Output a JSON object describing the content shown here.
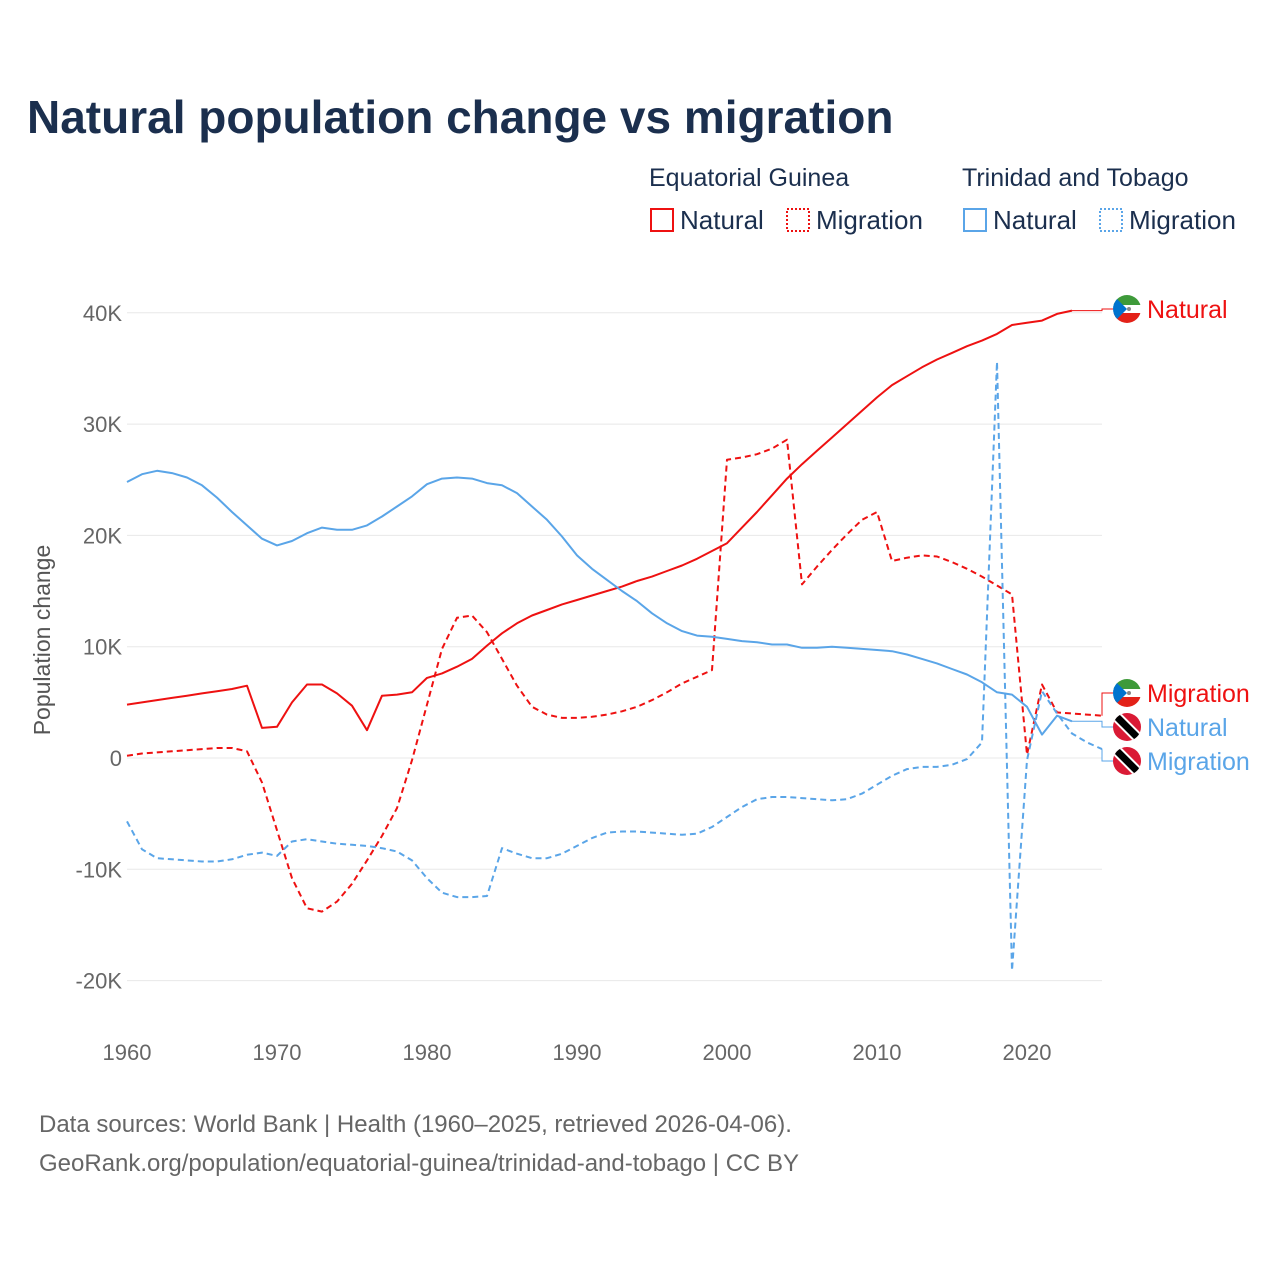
{
  "title": "Natural population change vs migration",
  "legend": {
    "groups": [
      {
        "country": "Equatorial Guinea",
        "color": "#ee1111",
        "items": [
          "Natural",
          "Migration"
        ]
      },
      {
        "country": "Trinidad and Tobago",
        "color": "#5aa5e8",
        "items": [
          "Natural",
          "Migration"
        ]
      }
    ]
  },
  "footer": {
    "line1": "Data sources: World Bank | Health (1960–2025, retrieved 2026-04-06).",
    "line2": "GeoRank.org/population/equatorial-guinea/trinidad-and-tobago | CC BY"
  },
  "chart_data": {
    "type": "line",
    "title": "Natural population change vs migration",
    "xlabel": "",
    "ylabel": "Population change",
    "xlim": [
      1960,
      2025
    ],
    "ylim": [
      -20000,
      40000
    ],
    "xticks": [
      1960,
      1970,
      1980,
      1990,
      2000,
      2010,
      2020
    ],
    "xtick_labels": [
      "1960",
      "1970",
      "1980",
      "1990",
      "2000",
      "2010",
      "2020"
    ],
    "yticks": [
      -20000,
      -10000,
      0,
      10000,
      20000,
      30000,
      40000
    ],
    "ytick_labels": [
      "-20K",
      "-10K",
      "0",
      "10K",
      "20K",
      "30K",
      "40K"
    ],
    "grid": true,
    "legend_position": "top-right",
    "series": [
      {
        "name": "Equatorial Guinea Natural",
        "end_label": "Natural",
        "color": "#ee1111",
        "dash": false,
        "flag": "equatorial-guinea",
        "start": 1960,
        "values": [
          4800,
          5000,
          5200,
          5400,
          5600,
          5800,
          6000,
          6200,
          6500,
          2700,
          2800,
          5000,
          6600,
          6600,
          5800,
          4700,
          2500,
          5600,
          5700,
          5900,
          7200,
          7600,
          8200,
          8900,
          10100,
          11200,
          12100,
          12800,
          13300,
          13800,
          14200,
          14600,
          15000,
          15400,
          15900,
          16300,
          16800,
          17300,
          17900,
          18600,
          19300,
          20700,
          22100,
          23600,
          25100,
          26400,
          27600,
          28800,
          30000,
          31200,
          32400,
          33500,
          34300,
          35100,
          35800,
          36400,
          37000,
          37500,
          38100,
          38900,
          39100,
          39300,
          39900,
          40200
        ]
      },
      {
        "name": "Equatorial Guinea Migration",
        "end_label": "Migration",
        "color": "#ee1111",
        "dash": true,
        "flag": "equatorial-guinea",
        "start": 1960,
        "values": [
          200,
          400,
          500,
          600,
          700,
          800,
          900,
          900,
          600,
          -2200,
          -6500,
          -10800,
          -13500,
          -13800,
          -12900,
          -11300,
          -9200,
          -7000,
          -4500,
          -200,
          4800,
          9800,
          12600,
          12800,
          11300,
          8900,
          6500,
          4600,
          3900,
          3600,
          3600,
          3700,
          3900,
          4200,
          4600,
          5200,
          5900,
          6700,
          7300,
          7900,
          26800,
          27000,
          27300,
          27800,
          28600,
          15600,
          17200,
          18700,
          20100,
          21400,
          22100,
          17700,
          18000,
          18200,
          18100,
          17600,
          17000,
          16300,
          15500,
          14700,
          300,
          6600,
          4100,
          4000,
          3900,
          3800
        ]
      },
      {
        "name": "Trinidad and Tobago Natural",
        "end_label": "Natural",
        "color": "#5aa5e8",
        "dash": false,
        "flag": "trinidad-and-tobago",
        "start": 1960,
        "values": [
          24800,
          25500,
          25800,
          25600,
          25200,
          24500,
          23400,
          22100,
          20900,
          19700,
          19100,
          19500,
          20200,
          20700,
          20500,
          20500,
          20900,
          21700,
          22600,
          23500,
          24600,
          25100,
          25200,
          25100,
          24700,
          24500,
          23800,
          22600,
          21400,
          19900,
          18200,
          17000,
          16000,
          15000,
          14100,
          13000,
          12100,
          11400,
          11000,
          10900,
          10700,
          10500,
          10400,
          10200,
          10200,
          9900,
          9900,
          10000,
          9900,
          9800,
          9700,
          9600,
          9300,
          8900,
          8500,
          8000,
          7500,
          6800,
          5900,
          5700,
          4600,
          2100,
          3800,
          3300
        ]
      },
      {
        "name": "Trinidad and Tobago Migration",
        "end_label": "Migration",
        "color": "#5aa5e8",
        "dash": true,
        "flag": "trinidad-and-tobago",
        "start": 1960,
        "values": [
          -5700,
          -8200,
          -9000,
          -9100,
          -9200,
          -9300,
          -9300,
          -9100,
          -8700,
          -8500,
          -8800,
          -7500,
          -7300,
          -7500,
          -7700,
          -7800,
          -7900,
          -8100,
          -8400,
          -9200,
          -10800,
          -12100,
          -12500,
          -12500,
          -12400,
          -8100,
          -8600,
          -9000,
          -9000,
          -8600,
          -7900,
          -7200,
          -6700,
          -6600,
          -6600,
          -6700,
          -6800,
          -6900,
          -6800,
          -6200,
          -5300,
          -4400,
          -3700,
          -3500,
          -3500,
          -3600,
          -3700,
          -3800,
          -3700,
          -3200,
          -2400,
          -1600,
          -1000,
          -800,
          -800,
          -600,
          -100,
          1400,
          35600,
          -19100,
          -200,
          6000,
          4000,
          2200,
          1400,
          800
        ]
      }
    ]
  }
}
